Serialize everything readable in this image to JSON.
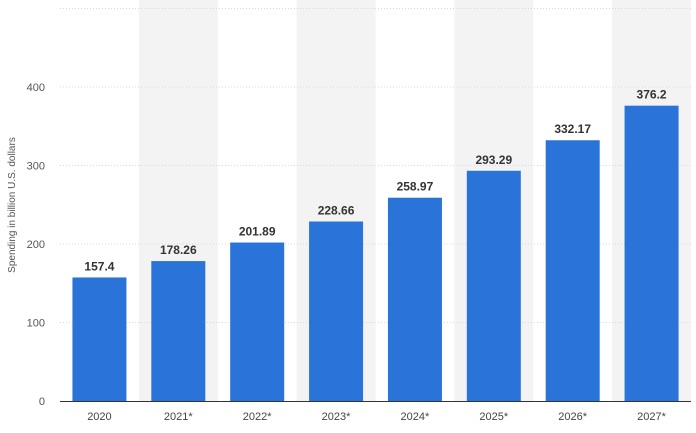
{
  "chart_data": {
    "type": "bar",
    "title": "",
    "xlabel": "",
    "ylabel": "Spending in billion U.S. dollars",
    "ylim": [
      0,
      400
    ],
    "yticks": [
      0,
      100,
      200,
      300,
      400
    ],
    "categories": [
      "2020",
      "2021*",
      "2022*",
      "2023*",
      "2024*",
      "2025*",
      "2026*",
      "2027*"
    ],
    "values": [
      157.4,
      178.26,
      201.89,
      228.66,
      258.97,
      293.29,
      332.17,
      376.2
    ],
    "value_labels": [
      "157.4",
      "178.26",
      "201.89",
      "228.66",
      "258.97",
      "293.29",
      "332.17",
      "376.2"
    ],
    "grid": true,
    "legend": "none",
    "colors": {
      "bar": "#2a74d9",
      "band": "#f3f3f3",
      "grid": "#d8d8d8",
      "axis": "#333333"
    }
  }
}
